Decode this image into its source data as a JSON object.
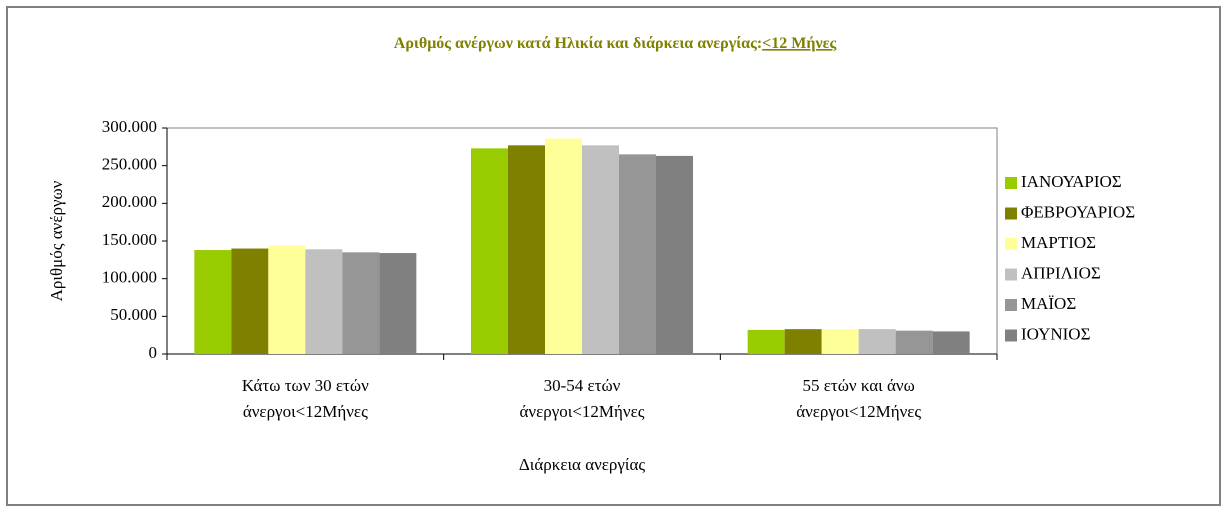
{
  "chart_data": {
    "type": "bar",
    "title": [
      "Αριθμός ανέργων κατά Ηλικία και διάρκεια ανεργίας:",
      "<12 Μήνες"
    ],
    "ylabel": "Αριθμός ανέργων",
    "xlabel": "Διάρκεια ανεργίας",
    "categories": [
      [
        "Κάτω των 30 ετών",
        "άνεργοι<12Μήνες"
      ],
      [
        "30-54 ετών",
        "άνεργοι<12Μήνες"
      ],
      [
        "55 ετών και άνω",
        "άνεργοι<12Μήνες"
      ]
    ],
    "series": [
      {
        "name": "ΙΑΝΟΥΑΡΙΟΣ",
        "color": "#99cc00",
        "values": [
          138000,
          273000,
          32000
        ]
      },
      {
        "name": "ΦΕΒΡΟΥΑΡΙΟΣ",
        "color": "#808000",
        "values": [
          140000,
          277000,
          33000
        ]
      },
      {
        "name": "ΜΑΡΤΙΟΣ",
        "color": "#ffff99",
        "values": [
          144000,
          286000,
          33000
        ]
      },
      {
        "name": "ΑΠΡΙΛΙΟΣ",
        "color": "#c0c0c0",
        "values": [
          139000,
          277000,
          33000
        ]
      },
      {
        "name": "ΜΑΪΟΣ",
        "color": "#969696",
        "values": [
          135000,
          265000,
          31000
        ]
      },
      {
        "name": "ΙΟΥΝΙΟΣ",
        "color": "#808080",
        "values": [
          134000,
          263000,
          30000
        ]
      }
    ],
    "ylim": [
      0,
      300000
    ],
    "yticks": [
      0,
      {
        "value": 50000,
        "label": "50.000"
      },
      {
        "value": 100000,
        "label": "100.000"
      },
      {
        "value": 150000,
        "label": "150.000"
      },
      {
        "value": 200000,
        "label": "200.000"
      },
      {
        "value": 250000,
        "label": "250.000"
      },
      {
        "value": 300000,
        "label": "300.000"
      }
    ],
    "legend": "right"
  }
}
